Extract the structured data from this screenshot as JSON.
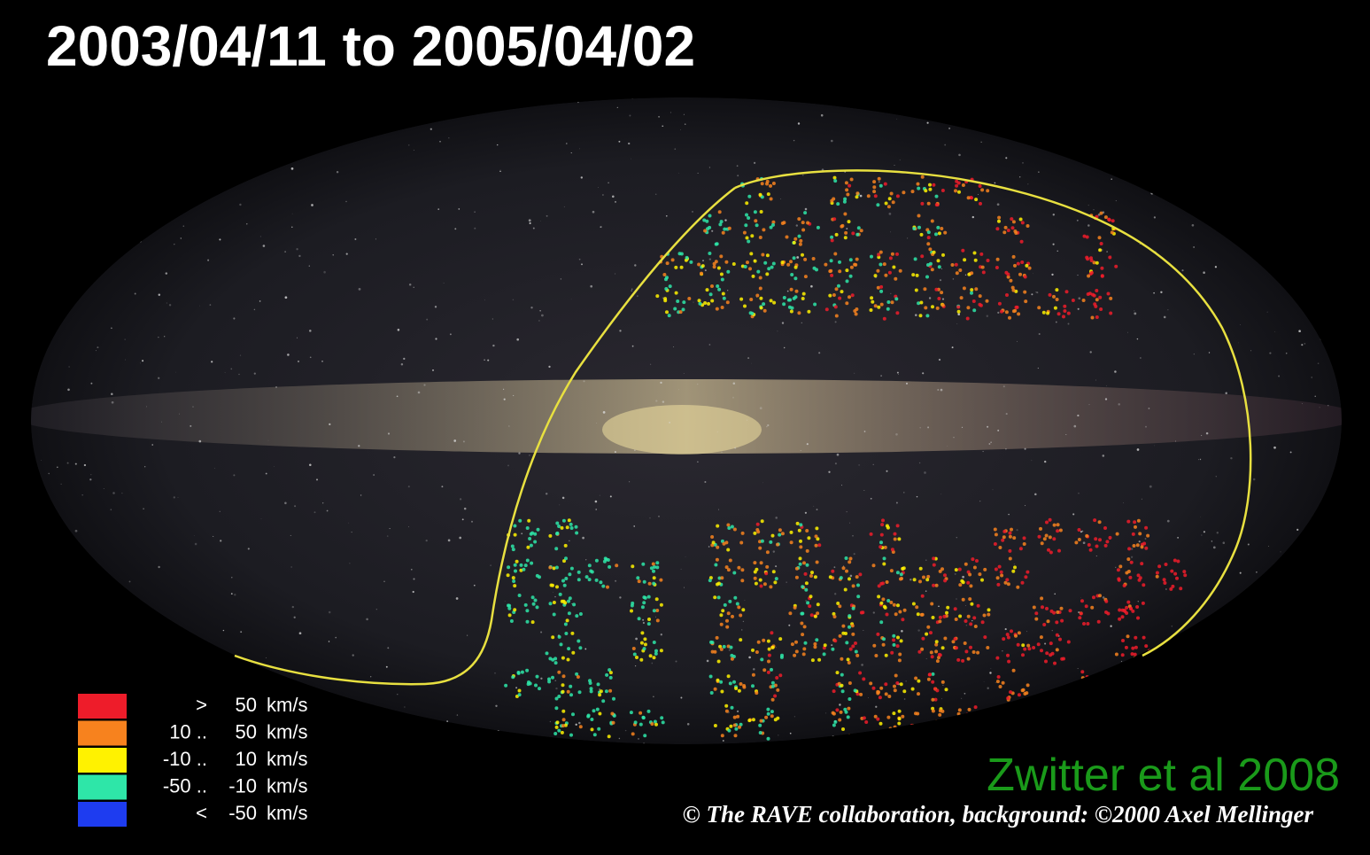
{
  "title": "2003/04/11 to 2005/04/02",
  "legend": [
    {
      "color": "#ee1c2a",
      "prefix": ">",
      "value": "50",
      "unit": "km/s"
    },
    {
      "color": "#f7821e",
      "prefix": "10 ..",
      "value": "50",
      "unit": "km/s"
    },
    {
      "color": "#fff200",
      "prefix": "-10 ..",
      "value": "10",
      "unit": "km/s"
    },
    {
      "color": "#2ee6a8",
      "prefix": "-50 ..",
      "value": "-10",
      "unit": "km/s"
    },
    {
      "color": "#1e3cf0",
      "prefix": "<",
      "value": "-50",
      "unit": "km/s"
    }
  ],
  "citation": "Zwitter et al 2008",
  "credit": "© The RAVE collaboration, background: ©2000 Axel Mellinger"
}
